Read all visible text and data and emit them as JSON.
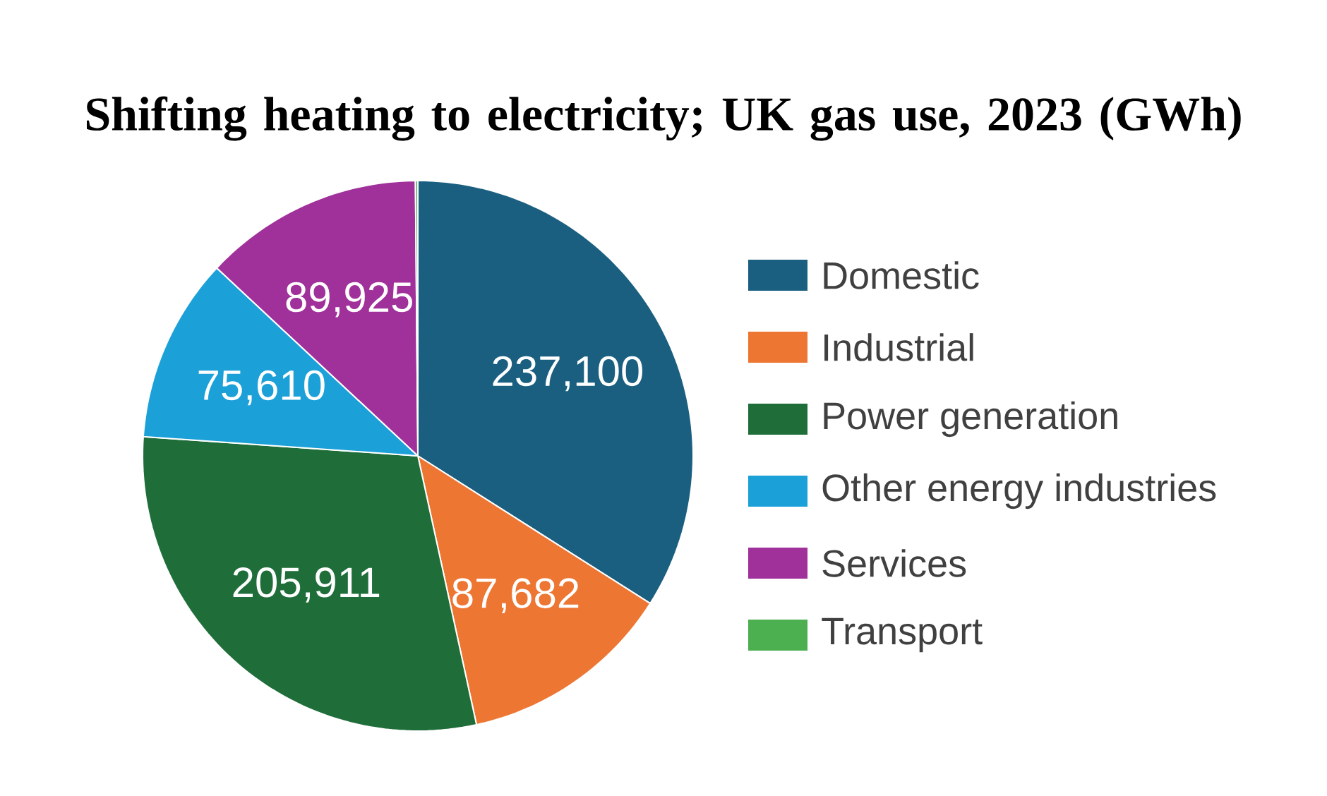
{
  "chart_data": {
    "type": "pie",
    "title": "Shifting heating to electricity; UK gas use, 2023 (GWh)",
    "categories": [
      "Domestic",
      "Industrial",
      "Power generation",
      "Other energy industries",
      "Services",
      "Transport"
    ],
    "values": [
      237100,
      87682,
      205911,
      75610,
      89925,
      1000
    ],
    "value_labels": [
      "237,100",
      "87,682",
      "205,911",
      "75,610",
      "89,925",
      null
    ],
    "colors": [
      "#1a5f80",
      "#ed7633",
      "#1f6e3a",
      "#1ba0d8",
      "#a0309a",
      "#4caf50"
    ],
    "legend": "right"
  }
}
